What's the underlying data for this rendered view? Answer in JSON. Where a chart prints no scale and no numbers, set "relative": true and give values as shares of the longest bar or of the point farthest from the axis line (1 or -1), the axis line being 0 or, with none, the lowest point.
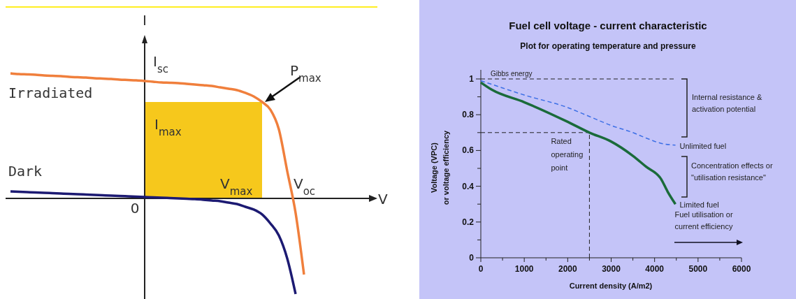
{
  "chart_data": [
    {
      "type": "line",
      "relative": true,
      "xlabel": "V",
      "ylabel": "I",
      "categories": [
        null,
        null,
        null,
        null,
        null,
        null,
        null,
        null,
        null,
        null,
        null,
        null,
        null,
        null,
        null,
        null,
        null,
        null,
        null,
        null,
        null,
        null,
        null,
        null,
        null,
        null,
        null,
        null,
        null,
        null,
        null,
        null,
        null,
        null,
        null,
        null
      ],
      "series": [
        {
          "name": "Irradiated",
          "color": "#f07f3c",
          "values": [
            1,
            0.994,
            0.992,
            0.989,
            0.983,
            0.98,
            0.978,
            0.972,
            0.969,
            0.966,
            0.961,
            0.958,
            0.955,
            0.95,
            0.947,
            0.944,
            0.939,
            0.933,
            0.927,
            0.925,
            0.922,
            0.916,
            0.911,
            0.905,
            0.899,
            0.888,
            0.877,
            0.866,
            0.844,
            0.816,
            0.771,
            0.709,
            0.553,
            0.218,
            -0.117,
            -0.609
          ]
        },
        {
          "name": "Dark",
          "color": "#1c1a72",
          "values": [
            0.056,
            0.053,
            0.05,
            0.047,
            0.045,
            0.042,
            0.039,
            0.036,
            0.034,
            0.031,
            0.028,
            0.025,
            0.022,
            0.02,
            0.017,
            0.014,
            0.011,
            0.008,
            0.006,
            0.003,
            0,
            -0.003,
            -0.006,
            -0.011,
            -0.017,
            -0.022,
            -0.034,
            -0.045,
            -0.067,
            -0.089,
            -0.128,
            -0.201,
            -0.296,
            -0.48,
            -0.765,
            null
          ]
        }
      ],
      "annotations": [
        "0",
        "I$_{sc}$",
        "P$_{max}$",
        "I$_{max}$",
        "V$_{max}$",
        "V$_{oc}$"
      ]
    },
    {
      "type": "line",
      "title": "Fuel cell voltage - current characteristic",
      "subtitle": "Plot for operating temperature and pressure",
      "xlabel": "Current density (A/m2)",
      "ylabel": "Voltage (VPC)\nor voltage efficiency",
      "xlim": [
        0,
        6000
      ],
      "xticks": [
        0,
        {
          "value": 500,
          "label": null
        },
        1000,
        {
          "value": 1500,
          "label": null
        },
        2000,
        {
          "value": 2500,
          "label": null
        },
        3000,
        {
          "value": 3500,
          "label": null
        },
        4000,
        {
          "value": 4500,
          "label": null
        },
        5000,
        {
          "value": 5500,
          "label": null
        },
        6000
      ],
      "ylim": [
        0,
        1
      ],
      "yticks": [
        0,
        {
          "value": 0.1,
          "label": null
        },
        0.2,
        {
          "value": 0.3,
          "label": null
        },
        0.4,
        {
          "value": 0.5,
          "label": null
        },
        0.6,
        {
          "value": 0.7,
          "label": null
        },
        0.8,
        {
          "value": 0.9,
          "label": null
        },
        1
      ],
      "series": [
        {
          "name": "Unlimited fuel",
          "color": "#3c6fe6",
          "line_style": "dashed",
          "x": [
            0,
            250,
            1000,
            2000,
            2500,
            3000,
            3500,
            3800,
            4150,
            4480
          ],
          "values": [
            0.99,
            0.97,
            0.91,
            0.84,
            0.79,
            0.74,
            0.7,
            0.67,
            0.64,
            0.63
          ]
        },
        {
          "name": "Limited fuel",
          "color": "#1a6b3a",
          "x": [
            0,
            250,
            1000,
            2000,
            2500,
            3000,
            3500,
            3800,
            4150,
            4300,
            4480
          ],
          "values": [
            0.98,
            0.94,
            0.87,
            0.76,
            0.7,
            0.65,
            0.57,
            0.51,
            0.44,
            0.37,
            0.3
          ]
        }
      ],
      "ref_lines": [
        {
          "axis": "y",
          "value": 1,
          "label": "Gibbs energy",
          "line_style": "dashed"
        },
        {
          "axis": "y",
          "value": 0.7,
          "line_style": "dashed"
        },
        {
          "axis": "x",
          "value": 2500,
          "label": "Rated\noperating\npoint",
          "line_style": "dashed"
        }
      ],
      "annotations": [
        "Internal resistance &\nactivation potential",
        "Concentration effects or\n\"utilisation resistance\"",
        "Fuel utilisation or\ncurrent efficiency"
      ]
    }
  ]
}
